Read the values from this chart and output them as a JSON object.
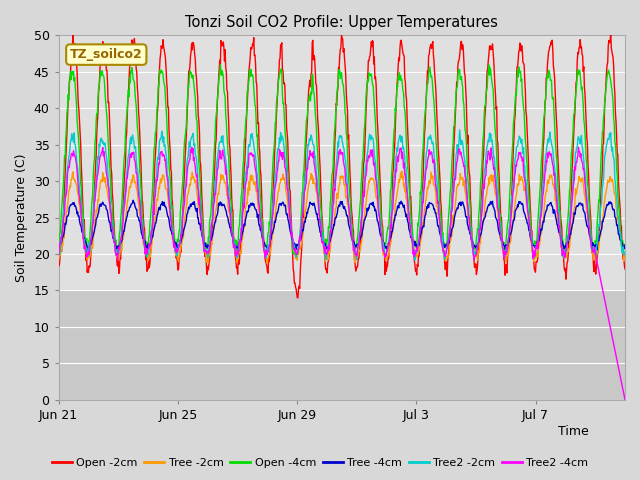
{
  "title": "Tonzi Soil CO2 Profile: Upper Temperatures",
  "ylabel": "Soil Temperature (C)",
  "xlabel": "Time",
  "ylim": [
    0,
    50
  ],
  "yticks": [
    0,
    5,
    10,
    15,
    20,
    25,
    30,
    35,
    40,
    45,
    50
  ],
  "bg_upper": "#e0e0e0",
  "bg_lower": "#c8c8c8",
  "bg_threshold": 15,
  "fig_bg": "#d8d8d8",
  "series": [
    {
      "label": "Open -2cm",
      "color": "#ff0000",
      "lw": 1.0
    },
    {
      "label": "Tree -2cm",
      "color": "#ff9900",
      "lw": 1.0
    },
    {
      "label": "Open -4cm",
      "color": "#00dd00",
      "lw": 1.0
    },
    {
      "label": "Tree -4cm",
      "color": "#0000cc",
      "lw": 1.0
    },
    {
      "label": "Tree2 -2cm",
      "color": "#00cccc",
      "lw": 1.0
    },
    {
      "label": "Tree2 -4cm",
      "color": "#ff00ff",
      "lw": 1.0
    }
  ],
  "annotation_text": "TZ_soilco2",
  "annotation_color": "#996600",
  "annotation_bg": "#ffffcc",
  "annotation_border": "#aa8800",
  "num_points": 950,
  "days": 19.0
}
